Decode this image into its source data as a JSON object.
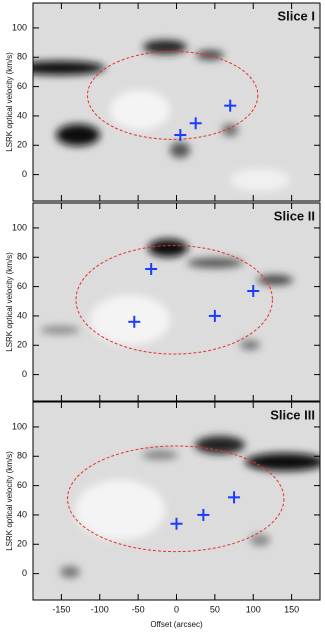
{
  "chart_data": [
    {
      "type": "scatter",
      "annotation": "Slice I",
      "ylabel": "LSRK optical velocity  (km/s)",
      "x": [
        5,
        25,
        70
      ],
      "values": [
        27,
        35,
        47
      ],
      "color": "#1a3cff",
      "ellipse": {
        "cx": -5,
        "cy": 54,
        "rx": 111,
        "ry": 30,
        "color": "#e8322a"
      },
      "xlim": [
        -187,
        187
      ],
      "ylim": [
        -18,
        117
      ],
      "xticks": [
        -150,
        -100,
        -50,
        0,
        50,
        100,
        150
      ],
      "yticks": [
        0,
        20,
        40,
        60,
        80,
        100
      ]
    },
    {
      "type": "scatter",
      "annotation": "Slice II",
      "ylabel": "LSRK optical velocity  (km/s)",
      "x": [
        -33,
        100,
        50,
        -55
      ],
      "values": [
        72,
        57,
        40,
        36
      ],
      "color": "#1a3cff",
      "ellipse": {
        "cx": -3,
        "cy": 51,
        "rx": 128,
        "ry": 37,
        "color": "#e8322a"
      },
      "xlim": [
        -187,
        187
      ],
      "ylim": [
        -18,
        117
      ],
      "xticks": [
        -150,
        -100,
        -50,
        0,
        50,
        100,
        150
      ],
      "yticks": [
        0,
        20,
        40,
        60,
        80,
        100
      ]
    },
    {
      "type": "scatter",
      "annotation": "Slice III",
      "ylabel": "LSRK optical velocity  (km/s)",
      "xlabel": "Offset (arcsec)",
      "x": [
        0,
        35,
        75
      ],
      "values": [
        34,
        40,
        52
      ],
      "color": "#1a3cff",
      "ellipse": {
        "cx": -1,
        "cy": 51,
        "rx": 141,
        "ry": 36,
        "color": "#e8322a"
      },
      "xlim": [
        -187,
        187
      ],
      "ylim": [
        -18,
        117
      ],
      "xticks": [
        -150,
        -100,
        -50,
        0,
        50,
        100,
        150
      ],
      "yticks": [
        0,
        20,
        40,
        60,
        80,
        100
      ]
    }
  ]
}
